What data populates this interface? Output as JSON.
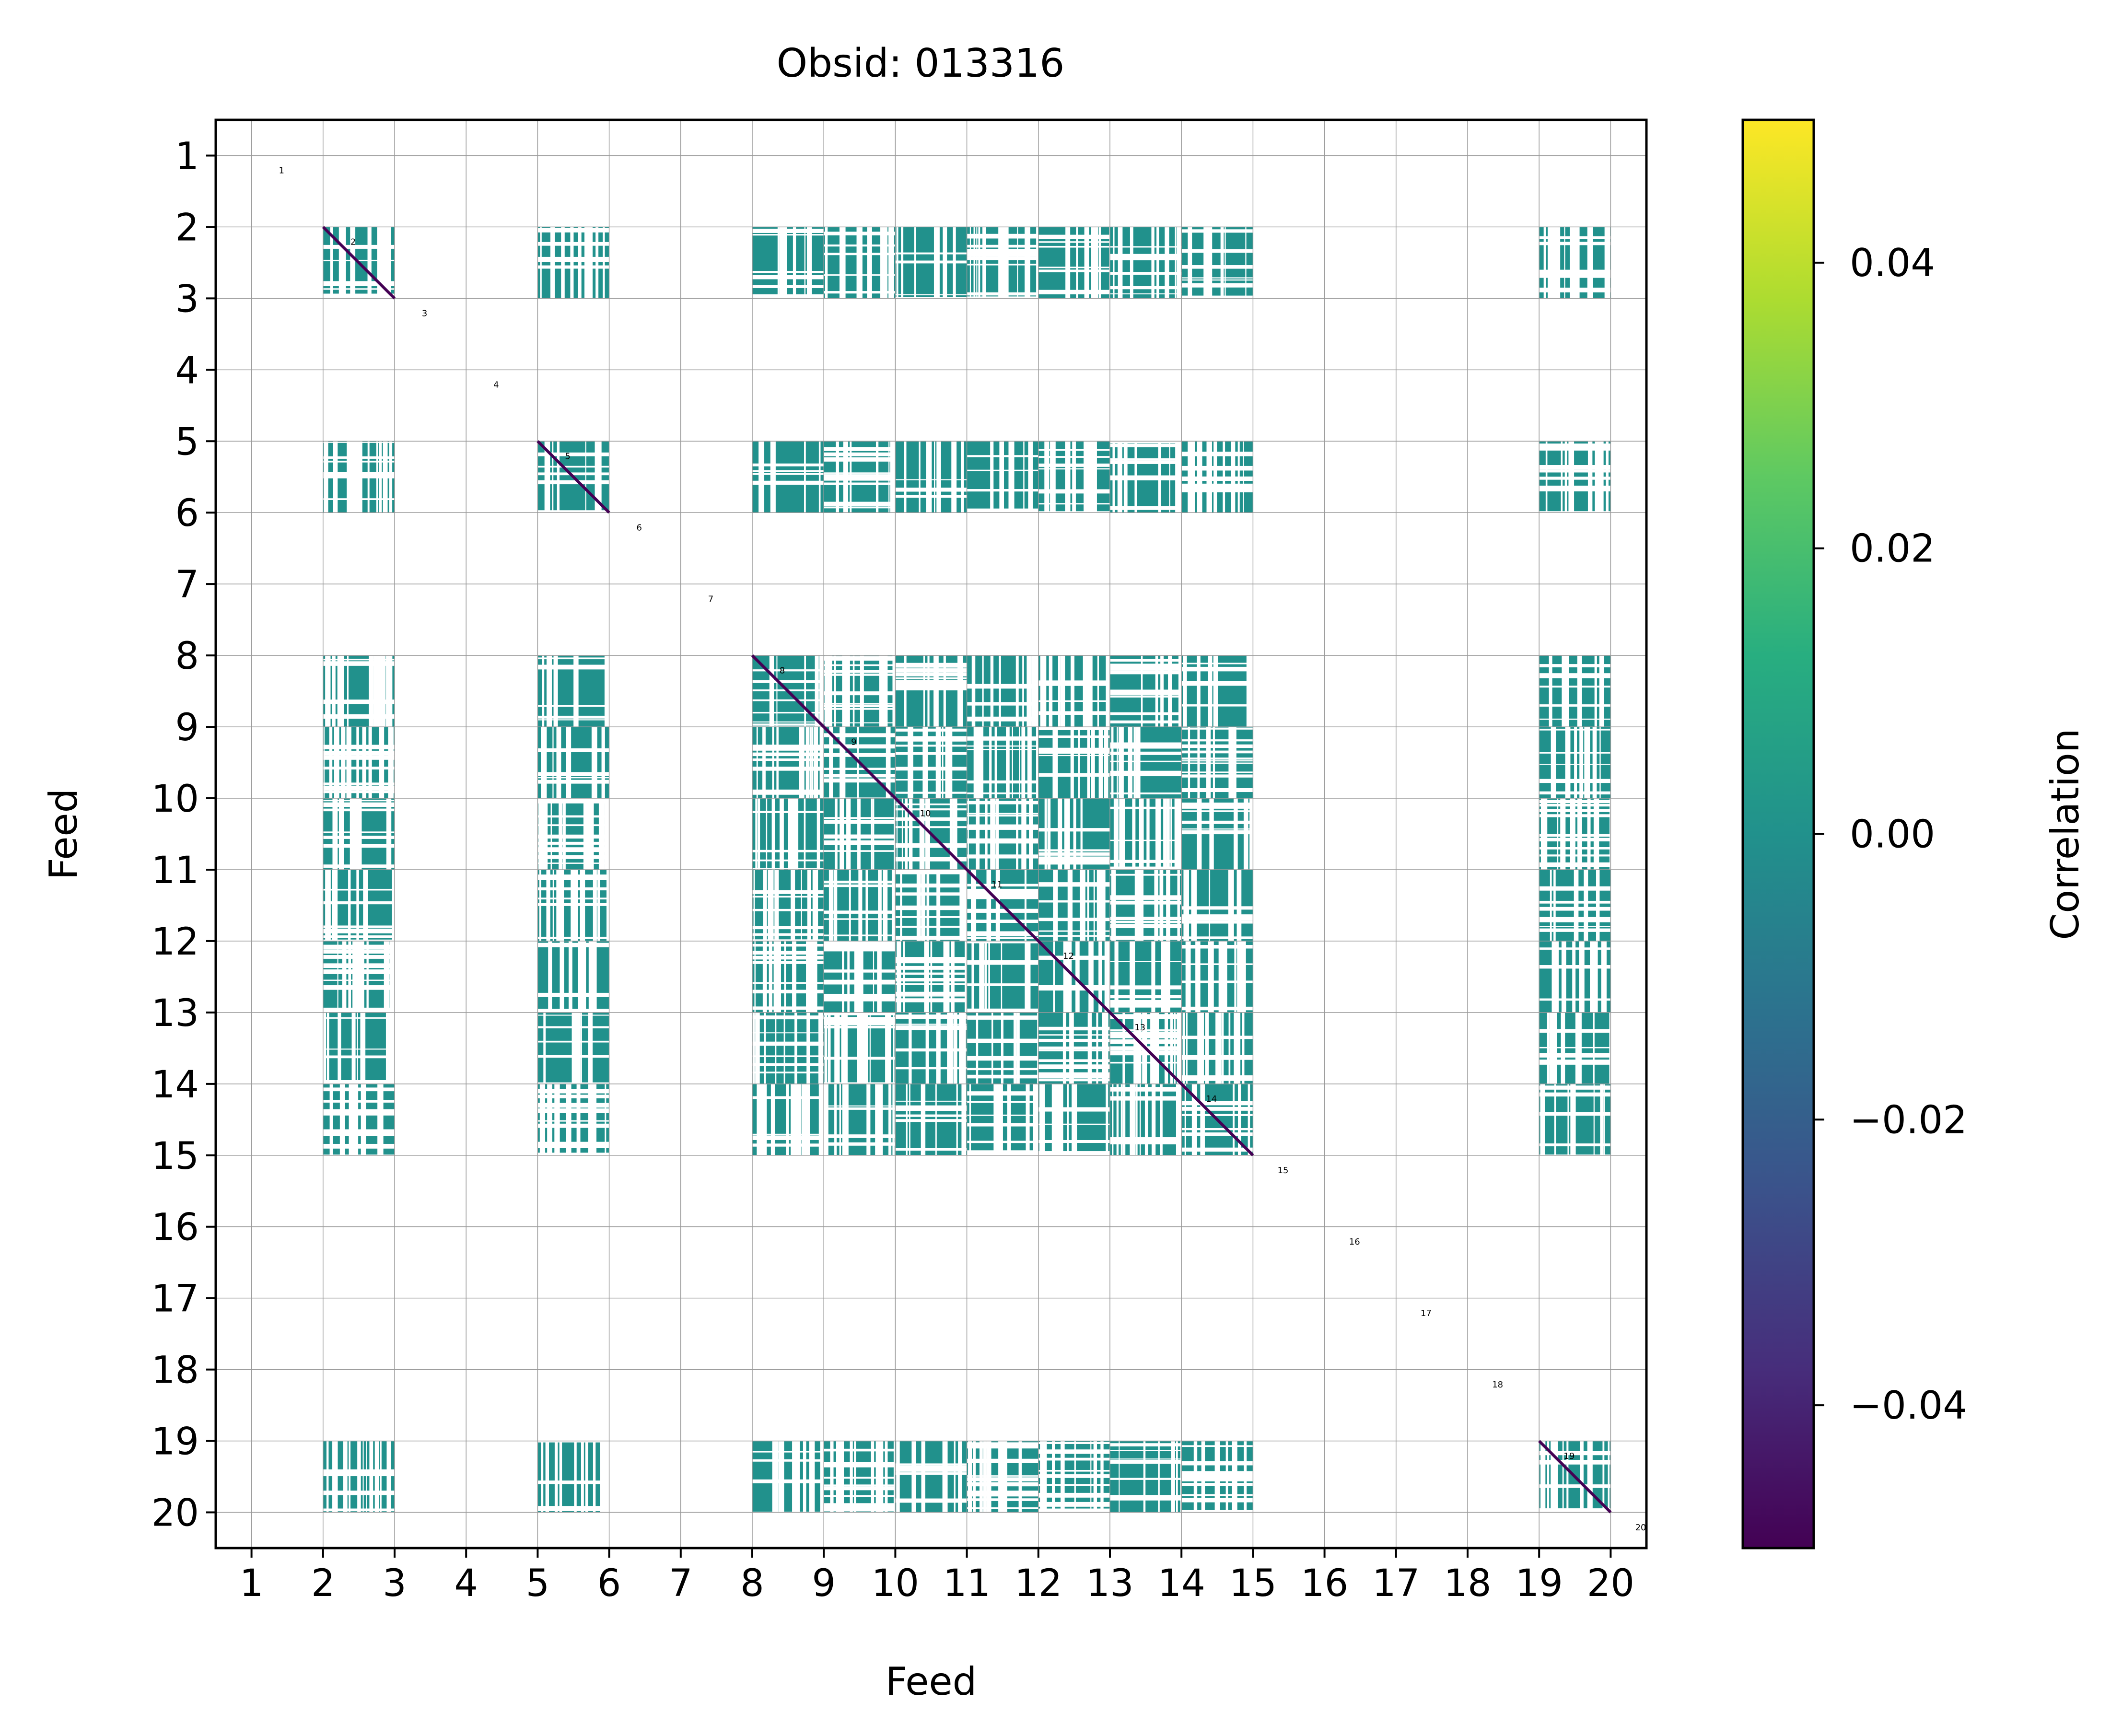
{
  "chart_data": {
    "type": "heatmap",
    "title": "Obsid: 013316",
    "xlabel": "Feed",
    "ylabel": "Feed",
    "x_ticks": [
      "1",
      "2",
      "3",
      "4",
      "5",
      "6",
      "7",
      "8",
      "9",
      "10",
      "11",
      "12",
      "13",
      "14",
      "15",
      "16",
      "17",
      "18",
      "19",
      "20"
    ],
    "y_ticks": [
      "1",
      "2",
      "3",
      "4",
      "5",
      "6",
      "7",
      "8",
      "9",
      "10",
      "11",
      "12",
      "13",
      "14",
      "15",
      "16",
      "17",
      "18",
      "19",
      "20"
    ],
    "block_labels": [
      "1",
      "2",
      "3",
      "4",
      "5",
      "6",
      "7",
      "8",
      "9",
      "10",
      "11",
      "12",
      "13",
      "14",
      "15",
      "16",
      "17",
      "18",
      "19",
      "20"
    ],
    "colorbar": {
      "label": "Correlation",
      "range": [
        -0.05,
        0.05
      ],
      "ticks": [
        0.04,
        0.02,
        0.0,
        -0.02,
        -0.04
      ],
      "tick_labels": [
        "0.04",
        "0.02",
        "0.00",
        "−0.02",
        "−0.04"
      ],
      "colors": [
        "#440154",
        "#472d7b",
        "#3b528b",
        "#2c728e",
        "#21918c",
        "#28ae80",
        "#5ec962",
        "#addc30",
        "#fde725"
      ]
    },
    "active_feeds": [
      2,
      5,
      8,
      9,
      10,
      11,
      12,
      13,
      14,
      19
    ],
    "inactive_feeds": [
      1,
      3,
      4,
      6,
      7,
      15,
      16,
      17,
      18,
      20
    ],
    "offdiagonal_value": 0.0,
    "diagonal_value": -0.05,
    "grid": true
  }
}
